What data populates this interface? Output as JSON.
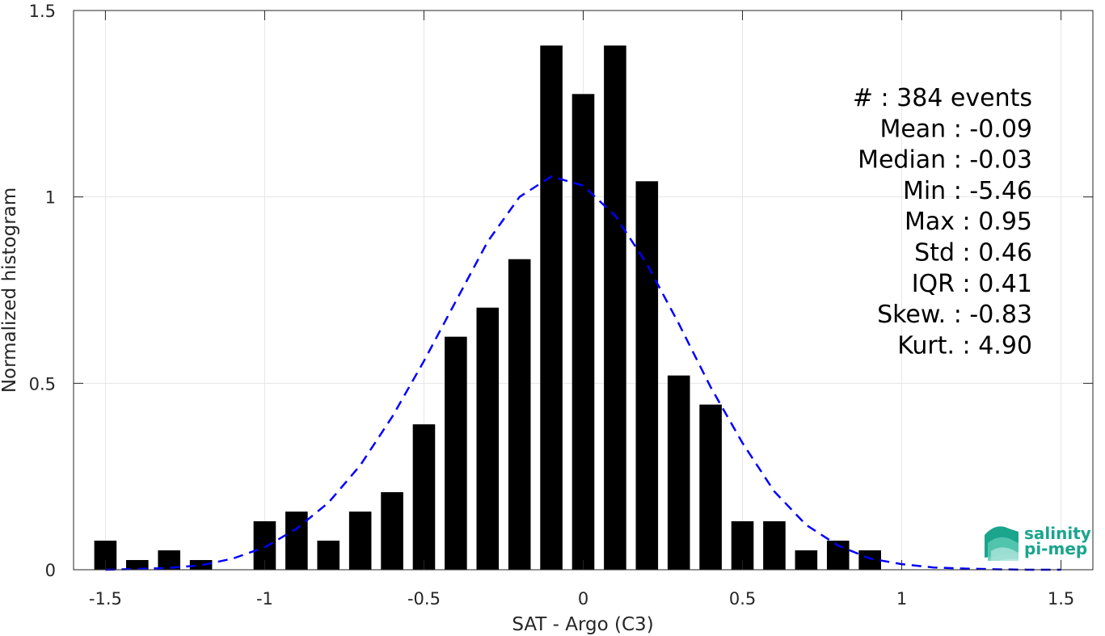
{
  "chart_data": {
    "type": "bar",
    "xlabel": "SAT - Argo (C3)",
    "ylabel": "Normalized histogram",
    "xlim": [
      -1.6,
      1.6
    ],
    "ylim": [
      0,
      1.5
    ],
    "xticks": [
      -1.5,
      -1,
      -0.5,
      0,
      0.5,
      1,
      1.5
    ],
    "xtick_labels": [
      "-1.5",
      "-1",
      "-0.5",
      "0",
      "0.5",
      "1",
      "1.5"
    ],
    "yticks": [
      0,
      0.5,
      1,
      1.5
    ],
    "ytick_labels": [
      "0",
      "0.5",
      "1",
      "1.5"
    ],
    "grid": true,
    "bar_width": 0.07,
    "bar_color": "#000000",
    "bars": {
      "x": [
        -1.5,
        -1.4,
        -1.3,
        -1.2,
        -1.1,
        -1.0,
        -0.9,
        -0.8,
        -0.7,
        -0.6,
        -0.5,
        -0.4,
        -0.3,
        -0.2,
        -0.1,
        0.0,
        0.1,
        0.2,
        0.3,
        0.4,
        0.5,
        0.6,
        0.7,
        0.8,
        0.9
      ],
      "values": [
        0.078,
        0.026,
        0.052,
        0.026,
        0.0,
        0.13,
        0.156,
        0.078,
        0.156,
        0.208,
        0.39,
        0.625,
        0.703,
        0.833,
        1.406,
        1.276,
        1.406,
        1.042,
        0.521,
        0.443,
        0.13,
        0.13,
        0.052,
        0.078,
        0.052
      ]
    },
    "fit_curve": {
      "name": "gaussian-fit",
      "color": "#0000ff",
      "style": "dashed",
      "x": [
        -1.5,
        -1.4,
        -1.3,
        -1.2,
        -1.1,
        -1.0,
        -0.9,
        -0.8,
        -0.7,
        -0.6,
        -0.5,
        -0.4,
        -0.3,
        -0.2,
        -0.1,
        0.0,
        0.1,
        0.2,
        0.3,
        0.4,
        0.5,
        0.6,
        0.7,
        0.8,
        0.9,
        1.0,
        1.1,
        1.2,
        1.3,
        1.4,
        1.5
      ],
      "y": [
        0.0,
        0.002,
        0.005,
        0.012,
        0.03,
        0.06,
        0.11,
        0.18,
        0.28,
        0.41,
        0.56,
        0.72,
        0.88,
        1.0,
        1.055,
        1.03,
        0.95,
        0.82,
        0.66,
        0.49,
        0.34,
        0.21,
        0.12,
        0.065,
        0.03,
        0.015,
        0.006,
        0.003,
        0.001,
        0.0,
        0.0
      ]
    },
    "annotations": [
      "#  : 384 events",
      "Mean : -0.09",
      "Median : -0.03",
      "Min : -5.46",
      "Max : 0.95",
      "Std : 0.46",
      "IQR : 0.41",
      "Skew. : -0.83",
      "Kurt. : 4.90"
    ]
  },
  "logo": {
    "line1": "salinity",
    "line2": "pi-mep",
    "color": "#1aa58c"
  }
}
